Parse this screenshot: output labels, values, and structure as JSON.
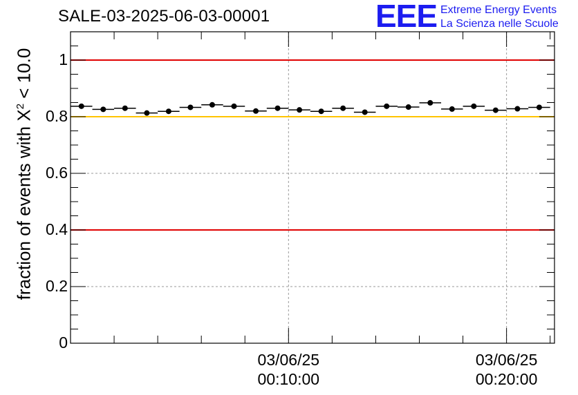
{
  "chart_data": {
    "type": "scatter",
    "title": "SALE-03-2025-06-03-00001",
    "ylabel_prefix": "fraction of events with",
    "ylabel_symbol": "X",
    "ylabel_sup": "2",
    "ylabel_suffix": "< 10.0",
    "xlabel": "",
    "ylim": [
      0,
      1.1
    ],
    "yticks": [
      {
        "value": 0,
        "label": "0"
      },
      {
        "value": 0.2,
        "label": "0.2"
      },
      {
        "value": 0.4,
        "label": "0.4"
      },
      {
        "value": 0.6,
        "label": "0.6"
      },
      {
        "value": 0.8,
        "label": "0.8"
      },
      {
        "value": 1.0,
        "label": "1"
      }
    ],
    "xlim_minutes": [
      0,
      22.2
    ],
    "xticks": [
      {
        "minutes": 10,
        "date": "03/06/25",
        "time": "00:10:00"
      },
      {
        "minutes": 20,
        "date": "03/06/25",
        "time": "00:20:00"
      }
    ],
    "bin_width_minutes": 1,
    "points": [
      {
        "x": 0.5,
        "y": 0.837
      },
      {
        "x": 1.5,
        "y": 0.826
      },
      {
        "x": 2.5,
        "y": 0.83
      },
      {
        "x": 3.5,
        "y": 0.813
      },
      {
        "x": 4.5,
        "y": 0.819
      },
      {
        "x": 5.5,
        "y": 0.833
      },
      {
        "x": 6.5,
        "y": 0.842
      },
      {
        "x": 7.5,
        "y": 0.837
      },
      {
        "x": 8.5,
        "y": 0.82
      },
      {
        "x": 9.5,
        "y": 0.83
      },
      {
        "x": 10.5,
        "y": 0.824
      },
      {
        "x": 11.5,
        "y": 0.819
      },
      {
        "x": 12.5,
        "y": 0.83
      },
      {
        "x": 13.5,
        "y": 0.816
      },
      {
        "x": 14.5,
        "y": 0.837
      },
      {
        "x": 15.5,
        "y": 0.834
      },
      {
        "x": 16.5,
        "y": 0.849
      },
      {
        "x": 17.5,
        "y": 0.827
      },
      {
        "x": 18.5,
        "y": 0.837
      },
      {
        "x": 19.5,
        "y": 0.823
      },
      {
        "x": 20.5,
        "y": 0.828
      },
      {
        "x": 21.5,
        "y": 0.833
      }
    ],
    "reference_lines": [
      {
        "name": "upper-limit",
        "y": 1.0,
        "color": "#e00000"
      },
      {
        "name": "target",
        "y": 0.8,
        "color": "#ffc400"
      },
      {
        "name": "lower-limit",
        "y": 0.4,
        "color": "#e00000"
      }
    ],
    "grid": true
  },
  "logo": {
    "mark": "EEE",
    "line1": "Extreme Energy Events",
    "line2": "La Scienza nelle Scuole",
    "color": "#1c1cf0"
  }
}
